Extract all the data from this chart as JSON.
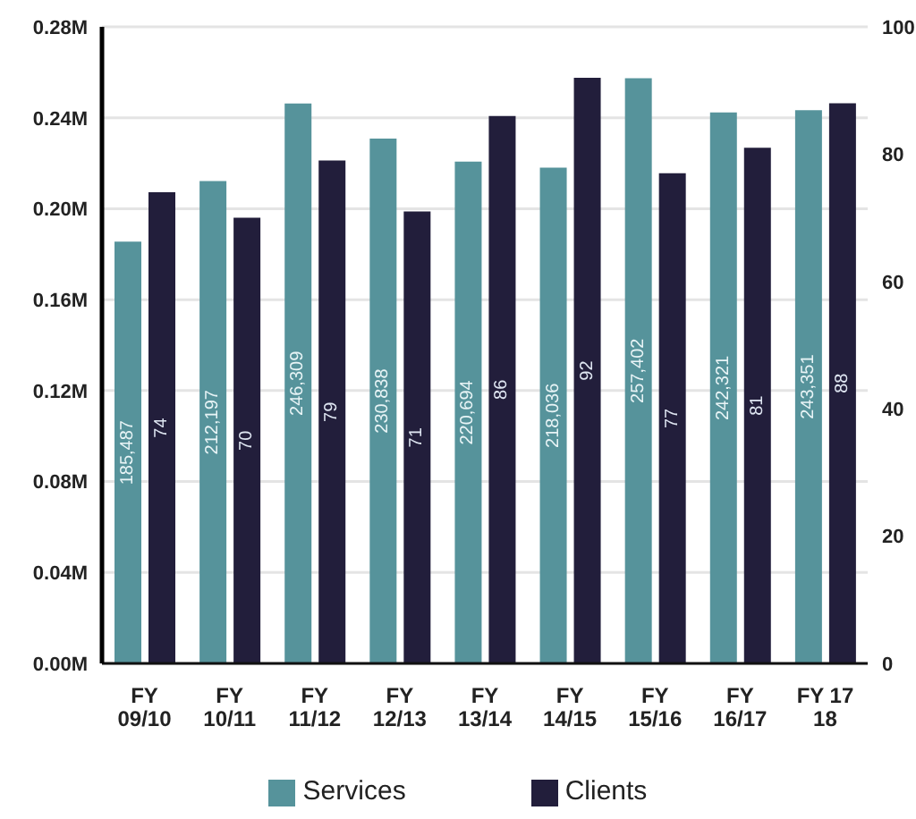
{
  "chart_data": {
    "type": "bar",
    "categories": [
      "FY 09/10",
      "FY 10/11",
      "FY 11/12",
      "FY 12/13",
      "FY 13/14",
      "FY 14/15",
      "FY 15/16",
      "FY 16/17",
      "FY 17 18"
    ],
    "series": [
      {
        "name": "Services",
        "color": "#56939b",
        "values": [
          185487,
          212197,
          246309,
          230838,
          220694,
          218036,
          257402,
          242321,
          243351
        ],
        "value_labels": [
          "185,487",
          "212,197",
          "246,309",
          "230,838",
          "220,694",
          "218,036",
          "257,402",
          "242,321",
          "243,351"
        ]
      },
      {
        "name": "Clients",
        "color": "#221e3b",
        "axis": "y2",
        "values": [
          74,
          70,
          79,
          71,
          86,
          92,
          77,
          81,
          88
        ],
        "value_labels": [
          "74",
          "70",
          "79",
          "71",
          "86",
          "92",
          "77",
          "81",
          "88"
        ]
      }
    ],
    "ylim": [
      0,
      280000
    ],
    "yticks": [
      {
        "value": 0,
        "label": "0.00M"
      },
      {
        "value": 40000,
        "label": "0.04M"
      },
      {
        "value": 80000,
        "label": "0.08M"
      },
      {
        "value": 120000,
        "label": "0.12M"
      },
      {
        "value": 160000,
        "label": "0.16M"
      },
      {
        "value": 200000,
        "label": "0.20M"
      },
      {
        "value": 240000,
        "label": "0.24M"
      },
      {
        "value": 280000,
        "label": "0.28M"
      }
    ],
    "y2lim": [
      0,
      100
    ],
    "y2ticks": [
      0,
      20,
      40,
      60,
      80,
      100
    ],
    "grid": "y",
    "legend": "bottom"
  }
}
